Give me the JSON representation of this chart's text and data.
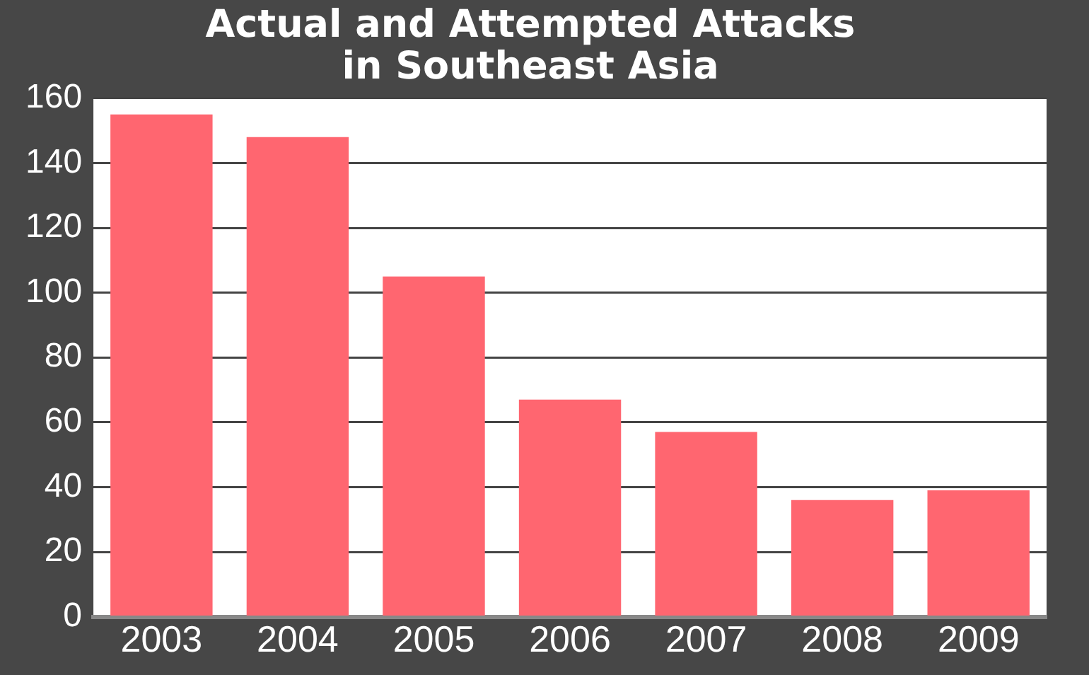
{
  "chart_data": {
    "type": "bar",
    "title": "Actual and Attempted Attacks\nin Southeast Asia",
    "categories": [
      "2003",
      "2004",
      "2005",
      "2006",
      "2007",
      "2008",
      "2009"
    ],
    "values": [
      155,
      148,
      105,
      67,
      57,
      36,
      39
    ],
    "color": "#ff6670",
    "ylim": [
      0,
      160
    ],
    "yticks": [
      0,
      20,
      40,
      60,
      80,
      100,
      120,
      140,
      160
    ],
    "grid": "y"
  }
}
